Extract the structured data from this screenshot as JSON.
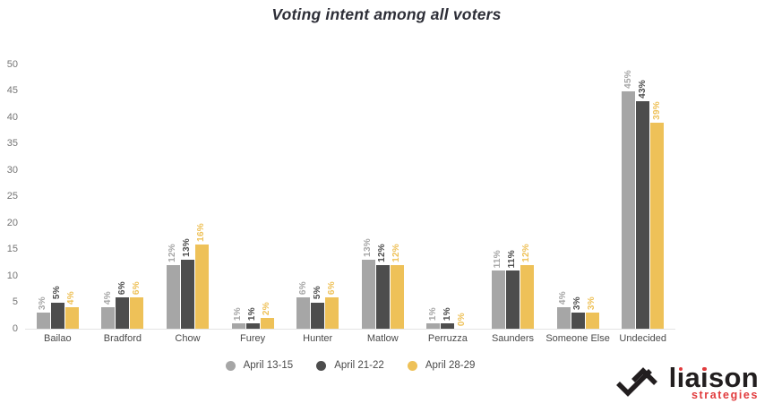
{
  "title": "Voting intent among all voters",
  "chart_data": {
    "type": "bar",
    "title": "Voting intent among all voters",
    "xlabel": "",
    "ylabel": "",
    "ylim": [
      0,
      50
    ],
    "yticks": [
      50,
      45,
      40,
      35,
      30,
      25,
      20,
      15,
      10,
      5,
      0
    ],
    "grid": false,
    "legend_position": "bottom",
    "label_format": "{v}%",
    "categories": [
      "Bailao",
      "Bradford",
      "Chow",
      "Furey",
      "Hunter",
      "Matlow",
      "Perruzza",
      "Saunders",
      "Someone Else",
      "Undecided"
    ],
    "series": [
      {
        "name": "April 13-15",
        "color": "#a6a6a6",
        "values": [
          3,
          4,
          12,
          1,
          6,
          13,
          1,
          11,
          4,
          45
        ]
      },
      {
        "name": "April 21-22",
        "color": "#4d4d4d",
        "values": [
          5,
          6,
          13,
          1,
          5,
          12,
          1,
          11,
          3,
          43
        ]
      },
      {
        "name": "April 28-29",
        "color": "#eec158",
        "values": [
          4,
          6,
          16,
          2,
          6,
          12,
          0,
          12,
          3,
          39
        ]
      }
    ]
  },
  "logo": {
    "brand": "liaison",
    "sub": "strategies",
    "brand_color": "#221e1f",
    "accent_color": "#e13a3c"
  }
}
